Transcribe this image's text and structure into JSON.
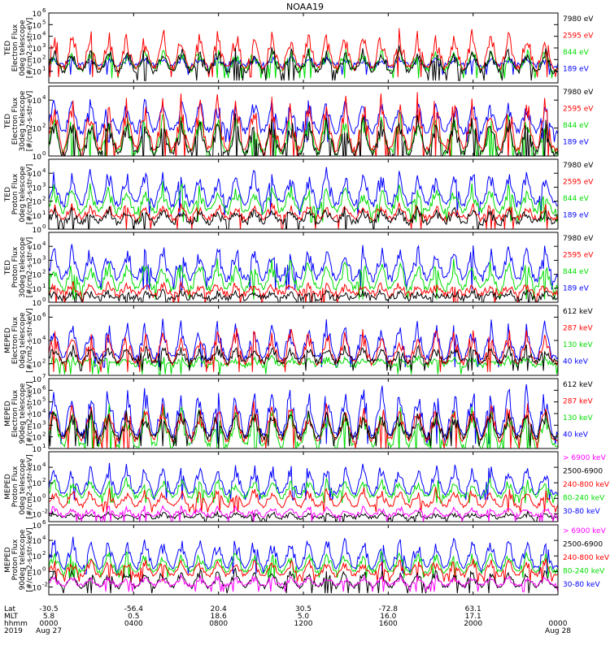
{
  "title": "NOAA19",
  "chart_data": [
    {
      "type": "line",
      "panel": 1,
      "ylabel_lines": [
        "TED",
        "Electron Flux",
        "0deg telescope",
        "[#/cm2-s-str-eV]"
      ],
      "ylim": [
        1,
        1000000
      ],
      "yscale": "log",
      "yticks": [
        {
          "base": "10",
          "exp": "1"
        },
        {
          "base": "10",
          "exp": "2"
        },
        {
          "base": "10",
          "exp": "3"
        },
        {
          "base": "10",
          "exp": "4"
        },
        {
          "base": "10",
          "exp": "5"
        },
        {
          "base": "10",
          "exp": "6"
        }
      ],
      "yticks_exp": [
        1,
        2,
        3,
        4,
        5,
        6
      ],
      "series": [
        {
          "name": "7980 eV",
          "color": "#000000",
          "baseline": 1,
          "max": 3.2
        },
        {
          "name": "2595 eV",
          "color": "#ff0000",
          "baseline": 1.3,
          "max": 4.8
        },
        {
          "name": "844 eV",
          "color": "#00dd00",
          "baseline": 1.2,
          "max": 3.0
        },
        {
          "name": "189 eV",
          "color": "#0000ff",
          "baseline": 1.5,
          "max": 2.2
        }
      ]
    },
    {
      "type": "line",
      "panel": 2,
      "ylabel_lines": [
        "TED",
        "Electron Flux",
        "30deg telescope",
        "[#/cm2-s-str-eV]"
      ],
      "ylim": [
        1,
        100000
      ],
      "yscale": "log",
      "yticks": [
        {
          "base": "10",
          "exp": "0"
        },
        {
          "base": "10",
          "exp": "2"
        },
        {
          "base": "10",
          "exp": "4"
        }
      ],
      "yticks_exp": [
        0,
        2,
        4
      ],
      "series": [
        {
          "name": "7980 eV",
          "color": "#000000",
          "baseline": 0.2,
          "max": 3.0
        },
        {
          "name": "2595 eV",
          "color": "#ff0000",
          "baseline": 0.5,
          "max": 4.7
        },
        {
          "name": "844 eV",
          "color": "#00dd00",
          "baseline": 0.3,
          "max": 3.2
        },
        {
          "name": "189 eV",
          "color": "#0000ff",
          "baseline": 1.8,
          "max": 4.3
        }
      ]
    },
    {
      "type": "line",
      "panel": 3,
      "ylabel_lines": [
        "TED",
        "Proton Flux",
        "0deg telescope",
        "[#/cm2-s-str-eV]"
      ],
      "ylim": [
        1,
        100000
      ],
      "yscale": "log",
      "yticks": [
        {
          "base": "10",
          "exp": "0"
        },
        {
          "base": "10",
          "exp": "1"
        },
        {
          "base": "10",
          "exp": "2"
        },
        {
          "base": "10",
          "exp": "3"
        },
        {
          "base": "10",
          "exp": "4"
        }
      ],
      "yticks_exp": [
        0,
        1,
        2,
        3,
        4
      ],
      "series": [
        {
          "name": "7980 eV",
          "color": "#000000",
          "baseline": 0.5,
          "max": 1.5
        },
        {
          "name": "2595 eV",
          "color": "#ff0000",
          "baseline": 0.8,
          "max": 1.8
        },
        {
          "name": "844 eV",
          "color": "#00dd00",
          "baseline": 1.3,
          "max": 3.3
        },
        {
          "name": "189 eV",
          "color": "#0000ff",
          "baseline": 1.8,
          "max": 4.5
        }
      ]
    },
    {
      "type": "line",
      "panel": 4,
      "ylabel_lines": [
        "TED",
        "Proton Flux",
        "30deg telescope",
        "[#/cm2-s-str-eV]"
      ],
      "ylim": [
        1,
        100000
      ],
      "yscale": "log",
      "yticks": [
        {
          "base": "10",
          "exp": "0"
        },
        {
          "base": "10",
          "exp": "1"
        },
        {
          "base": "10",
          "exp": "2"
        },
        {
          "base": "10",
          "exp": "3"
        },
        {
          "base": "10",
          "exp": "4"
        }
      ],
      "yticks_exp": [
        0,
        1,
        2,
        3,
        4
      ],
      "series": [
        {
          "name": "7980 eV",
          "color": "#000000",
          "baseline": 0.3,
          "max": 0.8
        },
        {
          "name": "2595 eV",
          "color": "#ff0000",
          "baseline": 0.6,
          "max": 1.4
        },
        {
          "name": "844 eV",
          "color": "#00dd00",
          "baseline": 1.0,
          "max": 3.2
        },
        {
          "name": "189 eV",
          "color": "#0000ff",
          "baseline": 1.7,
          "max": 4.3
        }
      ]
    },
    {
      "type": "line",
      "panel": 5,
      "ylabel_lines": [
        "MEPED",
        "Electron Flux",
        "0deg telescope",
        "[#/cm2-s-str-keV]"
      ],
      "ylim": [
        10,
        10000000
      ],
      "yscale": "log",
      "yticks": [
        {
          "base": "10",
          "exp": "2"
        },
        {
          "base": "10",
          "exp": "4"
        },
        {
          "base": "10",
          "exp": "6"
        }
      ],
      "yticks_exp": [
        2,
        4,
        6
      ],
      "series": [
        {
          "name": "612 keV",
          "color": "#000000",
          "baseline": 2.2,
          "max": 3.6
        },
        {
          "name": "287 keV",
          "color": "#ff0000",
          "baseline": 2.1,
          "max": 5.2
        },
        {
          "name": "130 keV",
          "color": "#00dd00",
          "baseline": 1.9,
          "max": 2.6
        },
        {
          "name": "40 keV",
          "color": "#0000ff",
          "baseline": 2.5,
          "max": 6.0
        }
      ]
    },
    {
      "type": "line",
      "panel": 6,
      "ylabel_lines": [
        "MEPED",
        "Electron Flux",
        "90deg telescope",
        "[#/cm2-s-str-keV]"
      ],
      "ylim": [
        10,
        10000000
      ],
      "yscale": "log",
      "yticks": [
        {
          "base": "10",
          "exp": "1"
        },
        {
          "base": "10",
          "exp": "2"
        },
        {
          "base": "10",
          "exp": "3"
        },
        {
          "base": "10",
          "exp": "4"
        },
        {
          "base": "10",
          "exp": "5"
        },
        {
          "base": "10",
          "exp": "6"
        },
        {
          "base": "10",
          "exp": "7"
        }
      ],
      "yticks_exp": [
        1,
        2,
        3,
        4,
        5,
        6,
        7
      ],
      "series": [
        {
          "name": "612 keV",
          "color": "#000000",
          "baseline": 2.0,
          "max": 4.5
        },
        {
          "name": "287 keV",
          "color": "#ff0000",
          "baseline": 1.8,
          "max": 5.2
        },
        {
          "name": "130 keV",
          "color": "#00dd00",
          "baseline": 1.3,
          "max": 5.0
        },
        {
          "name": "40 keV",
          "color": "#0000ff",
          "baseline": 2.2,
          "max": 6.8
        }
      ]
    },
    {
      "type": "line",
      "panel": 7,
      "ylabel_lines": [
        "MEPED",
        "Proton Flux",
        "0deg telescope",
        "[#/cm2-s-str-keV]"
      ],
      "ylim": [
        0.001,
        1000000
      ],
      "yscale": "log",
      "yticks": [
        {
          "base": "10",
          "exp": "-2"
        },
        {
          "base": "10",
          "exp": "0"
        },
        {
          "base": "10",
          "exp": "2"
        },
        {
          "base": "10",
          "exp": "4"
        }
      ],
      "yticks_exp": [
        -2,
        0,
        2,
        4
      ],
      "series": [
        {
          "name": "> 6900 keV",
          "color": "#ff00ff",
          "baseline": -2.2,
          "max": -1.0
        },
        {
          "name": "2500-6900",
          "color": "#000000",
          "baseline": -2.5,
          "max": -1.8
        },
        {
          "name": "240-800 keV",
          "color": "#ff0000",
          "baseline": -1.0,
          "max": 1.5
        },
        {
          "name": "80-240 keV",
          "color": "#00dd00",
          "baseline": 0.2,
          "max": 2.8
        },
        {
          "name": "30-80 keV",
          "color": "#0000ff",
          "baseline": 0.6,
          "max": 4.8
        }
      ]
    },
    {
      "type": "line",
      "panel": 8,
      "ylabel_lines": [
        "MEPED",
        "Proton Flux",
        "90deg telescope",
        "[#/cm2-s-str-keV]"
      ],
      "ylim": [
        0.001,
        1000000
      ],
      "yscale": "log",
      "yticks": [
        {
          "base": "10",
          "exp": "-2"
        },
        {
          "base": "10",
          "exp": "0"
        },
        {
          "base": "10",
          "exp": "2"
        },
        {
          "base": "10",
          "exp": "4"
        },
        {
          "base": "10",
          "exp": "6"
        }
      ],
      "yticks_exp": [
        -2,
        0,
        2,
        4,
        6
      ],
      "series": [
        {
          "name": "> 6900 keV",
          "color": "#ff00ff",
          "baseline": -1.8,
          "max": -0.5
        },
        {
          "name": "2500-6900",
          "color": "#000000",
          "baseline": -2.0,
          "max": 0.5
        },
        {
          "name": "240-800 keV",
          "color": "#ff0000",
          "baseline": -0.5,
          "max": 1.8
        },
        {
          "name": "80-240 keV",
          "color": "#00dd00",
          "baseline": 0.0,
          "max": 2.8
        },
        {
          "name": "30-80 keV",
          "color": "#0000ff",
          "baseline": 0.5,
          "max": 4.8
        }
      ]
    }
  ],
  "x_axis": {
    "row_labels": [
      "Lat",
      "MLT",
      "hhmm",
      "2019"
    ],
    "ticks": [
      {
        "lat": "-30.5",
        "mlt": "5.8",
        "hhmm": "0000",
        "date": "Aug 27"
      },
      {
        "lat": "-56.4",
        "mlt": "0.5",
        "hhmm": "0400",
        "date": ""
      },
      {
        "lat": "20.4",
        "mlt": "18.6",
        "hhmm": "0800",
        "date": ""
      },
      {
        "lat": "30.5",
        "mlt": "5.0",
        "hhmm": "1200",
        "date": ""
      },
      {
        "lat": "-72.8",
        "mlt": "16.0",
        "hhmm": "1600",
        "date": ""
      },
      {
        "lat": "63.1",
        "mlt": "17.1",
        "hhmm": "2000",
        "date": ""
      },
      {
        "lat": "",
        "mlt": "",
        "hhmm": "0000",
        "date": "Aug 28"
      }
    ],
    "hours": [
      0,
      4,
      8,
      12,
      16,
      20,
      24
    ]
  }
}
